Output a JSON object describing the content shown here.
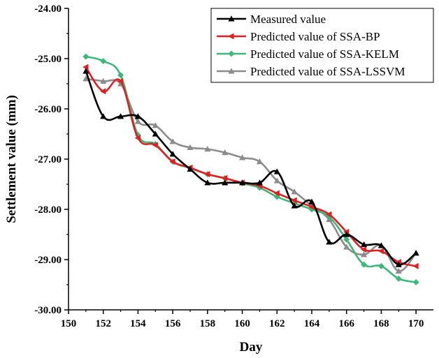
{
  "chart_data": {
    "type": "line",
    "title": "",
    "xlabel": "Day",
    "ylabel": "Settlement value (mm)",
    "xlim": [
      150,
      171
    ],
    "ylim": [
      -30.0,
      -24.0
    ],
    "xticks": [
      150,
      152,
      154,
      156,
      158,
      160,
      162,
      164,
      166,
      168,
      170
    ],
    "xtick_labels": [
      "150",
      "152",
      "154",
      "156",
      "158",
      "160",
      "162",
      "164",
      "166",
      "168",
      "170"
    ],
    "yticks": [
      -24.0,
      -25.0,
      -26.0,
      -27.0,
      -28.0,
      -29.0,
      -30.0
    ],
    "ytick_labels": [
      "-24.00",
      "-25.00",
      "-26.00",
      "-27.00",
      "-28.00",
      "-29.00",
      "-30.00"
    ],
    "grid": false,
    "legend_position": "top-right",
    "x": [
      151,
      152,
      153,
      154,
      155,
      156,
      157,
      158,
      159,
      160,
      161,
      162,
      163,
      164,
      165,
      166,
      167,
      168,
      169,
      170
    ],
    "series": [
      {
        "name": "Measured value",
        "color": "#000000",
        "marker": "triangle-up",
        "values": [
          -25.25,
          -26.15,
          -26.15,
          -26.15,
          -26.5,
          -26.9,
          -27.2,
          -27.47,
          -27.47,
          -27.47,
          -27.47,
          -27.25,
          -27.93,
          -27.85,
          -28.65,
          -28.5,
          -28.7,
          -28.72,
          -29.1,
          -28.87
        ]
      },
      {
        "name": "Predicted value of SSA-BP",
        "color": "#e02020",
        "marker": "triangle-left",
        "values": [
          -25.17,
          -25.65,
          -25.45,
          -26.58,
          -26.72,
          -27.05,
          -27.17,
          -27.3,
          -27.38,
          -27.47,
          -27.53,
          -27.68,
          -27.82,
          -27.95,
          -28.1,
          -28.45,
          -28.8,
          -28.83,
          -29.05,
          -29.13
        ]
      },
      {
        "name": "Predicted value of SSA-KELM",
        "color": "#3cb878",
        "marker": "diamond",
        "values": [
          -24.96,
          -25.05,
          -25.33,
          -26.52,
          -26.7,
          -27.05,
          -27.18,
          -27.3,
          -27.38,
          -27.48,
          -27.57,
          -27.75,
          -27.88,
          -28.0,
          -28.15,
          -28.6,
          -29.1,
          -29.13,
          -29.38,
          -29.45
        ]
      },
      {
        "name": "Predicted value of SSA-LSSVM",
        "color": "#8c8c8c",
        "marker": "triangle-up",
        "values": [
          -25.4,
          -25.45,
          -25.5,
          -26.25,
          -26.33,
          -26.65,
          -26.77,
          -26.8,
          -26.87,
          -26.97,
          -27.05,
          -27.43,
          -27.65,
          -27.93,
          -28.2,
          -28.75,
          -28.9,
          -28.72,
          -29.23,
          -28.87
        ]
      }
    ]
  }
}
